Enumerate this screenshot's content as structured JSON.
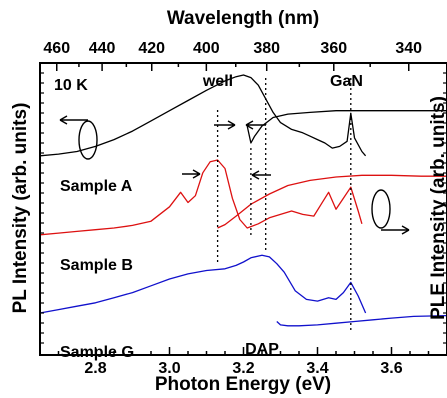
{
  "chart_data": {
    "type": "line",
    "title": "",
    "xlabel": "Photon Energy (eV)",
    "x2label": "Wavelength (nm)",
    "ylabel_left": "PL Intensity (arb. units)",
    "ylabel_right": "PLE Intensity (arb. units)",
    "xlim": [
      2.65,
      3.75
    ],
    "x_ticks": [
      2.8,
      3.0,
      3.2,
      3.4,
      3.6
    ],
    "x_tick_labels": [
      "2.8",
      "3.0",
      "3.2",
      "3.4",
      "3.6"
    ],
    "wavelength_ticks": [
      460,
      440,
      420,
      400,
      380,
      360,
      340
    ],
    "wavelength_tick_labels": [
      "460",
      "440",
      "420",
      "400",
      "380",
      "360",
      "340"
    ],
    "annotations": [
      "10 K",
      "well",
      "GaN",
      "DAP",
      "Sample A",
      "Sample B",
      "Sample G"
    ],
    "dotted_markers_eV": [
      3.13,
      3.22,
      3.26,
      3.49
    ],
    "grid": false,
    "series": [
      {
        "name": "Sample A",
        "kind": "PL",
        "color": "#000000",
        "offset": 2.0,
        "x": [
          2.65,
          2.7,
          2.75,
          2.8,
          2.85,
          2.9,
          2.95,
          3.0,
          3.05,
          3.1,
          3.15,
          3.18,
          3.2,
          3.22,
          3.24,
          3.26,
          3.28,
          3.3,
          3.33,
          3.36,
          3.38,
          3.4,
          3.42,
          3.44,
          3.46,
          3.48,
          3.49,
          3.5,
          3.52,
          3.53
        ],
        "y": [
          0.05,
          0.07,
          0.1,
          0.16,
          0.24,
          0.34,
          0.46,
          0.58,
          0.7,
          0.82,
          0.93,
          0.98,
          1.0,
          0.97,
          0.88,
          0.72,
          0.56,
          0.44,
          0.36,
          0.32,
          0.28,
          0.24,
          0.2,
          0.14,
          0.16,
          0.22,
          0.55,
          0.26,
          0.1,
          0.05
        ]
      },
      {
        "name": "Sample A",
        "kind": "PLE",
        "color": "#000000",
        "offset": 2.0,
        "x": [
          3.21,
          3.22,
          3.23,
          3.25,
          3.28,
          3.32,
          3.38,
          3.45,
          3.5,
          3.58,
          3.66,
          3.75
        ],
        "y": [
          0.4,
          0.2,
          0.28,
          0.4,
          0.5,
          0.54,
          0.56,
          0.58,
          0.58,
          0.58,
          0.58,
          0.58
        ]
      },
      {
        "name": "Sample B",
        "kind": "PL",
        "color": "#dd1111",
        "offset": 1.0,
        "x": [
          2.65,
          2.7,
          2.75,
          2.8,
          2.85,
          2.9,
          2.95,
          3.0,
          3.03,
          3.05,
          3.07,
          3.09,
          3.11,
          3.13,
          3.15,
          3.17,
          3.19,
          3.21,
          3.24,
          3.27,
          3.3,
          3.33,
          3.36,
          3.39,
          3.41,
          3.43,
          3.45,
          3.47,
          3.49,
          3.51,
          3.52
        ],
        "y": [
          0.12,
          0.14,
          0.16,
          0.18,
          0.2,
          0.23,
          0.28,
          0.45,
          0.62,
          0.5,
          0.58,
          0.85,
          0.98,
          1.0,
          0.9,
          0.55,
          0.3,
          0.2,
          0.25,
          0.32,
          0.36,
          0.4,
          0.36,
          0.34,
          0.48,
          0.62,
          0.42,
          0.55,
          0.68,
          0.4,
          0.25
        ]
      },
      {
        "name": "Sample B",
        "kind": "PLE",
        "color": "#dd1111",
        "offset": 1.0,
        "x": [
          3.13,
          3.15,
          3.18,
          3.22,
          3.27,
          3.32,
          3.38,
          3.45,
          3.52,
          3.6,
          3.68,
          3.75
        ],
        "y": [
          0.2,
          0.24,
          0.34,
          0.48,
          0.6,
          0.7,
          0.76,
          0.8,
          0.82,
          0.82,
          0.81,
          0.81
        ]
      },
      {
        "name": "Sample G",
        "kind": "PL",
        "color": "#1111cc",
        "offset": 0.0,
        "x": [
          2.65,
          2.7,
          2.75,
          2.8,
          2.85,
          2.9,
          2.95,
          3.0,
          3.05,
          3.1,
          3.15,
          3.18,
          3.2,
          3.22,
          3.25,
          3.27,
          3.29,
          3.31,
          3.34,
          3.37,
          3.4,
          3.43,
          3.45,
          3.47,
          3.49,
          3.51,
          3.53
        ],
        "y": [
          0.2,
          0.24,
          0.28,
          0.32,
          0.38,
          0.44,
          0.52,
          0.6,
          0.66,
          0.7,
          0.72,
          0.76,
          0.8,
          0.85,
          0.88,
          0.86,
          0.78,
          0.68,
          0.46,
          0.36,
          0.34,
          0.38,
          0.36,
          0.44,
          0.56,
          0.4,
          0.2
        ]
      },
      {
        "name": "Sample G",
        "kind": "PLE",
        "color": "#1111cc",
        "offset": 0.0,
        "x": [
          3.29,
          3.3,
          3.32,
          3.35,
          3.4,
          3.45,
          3.5,
          3.55,
          3.6,
          3.66,
          3.75
        ],
        "y": [
          0.1,
          0.06,
          0.05,
          0.05,
          0.06,
          0.08,
          0.1,
          0.12,
          0.14,
          0.16,
          0.17
        ]
      }
    ]
  }
}
